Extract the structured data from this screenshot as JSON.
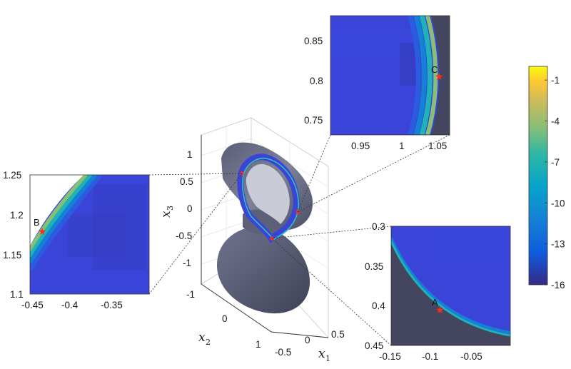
{
  "colors": {
    "panel_fill": "#3b44d8",
    "dark_surface": "#43465e",
    "surface_light": "#6b7088",
    "star": "#ff2a1a"
  },
  "chart_data": [
    {
      "type": "surface",
      "panel": "main-3d",
      "axes": [
        {
          "axis": "x1",
          "label_main": "x",
          "label_sub": "1",
          "ticks": [
            "-0.5",
            "0",
            "0.5"
          ]
        },
        {
          "axis": "x2",
          "label_main": "x",
          "label_sub": "2",
          "ticks": [
            "-1",
            "0",
            "1"
          ]
        },
        {
          "axis": "x3",
          "label_main": "x",
          "label_sub": "3",
          "ticks": [
            "1",
            "0.5",
            "0",
            "-0.5",
            "-1"
          ]
        }
      ],
      "grid": true
    },
    {
      "type": "heatmap",
      "panel": "inset-B",
      "xlim": [
        -0.45,
        -0.3
      ],
      "ylim": [
        1.1,
        1.25
      ],
      "x_ticks": [
        "-0.45",
        "-0.4",
        "-0.35"
      ],
      "y_ticks": [
        "1.25",
        "1.2",
        "1.15",
        "1.1"
      ],
      "points": [
        {
          "label": "B",
          "x": -0.437,
          "y": 1.182
        }
      ]
    },
    {
      "type": "heatmap",
      "panel": "inset-C",
      "xlim": [
        0.92,
        1.06
      ],
      "ylim": [
        0.73,
        0.88
      ],
      "x_ticks": [
        "0.95",
        "1",
        "1.05"
      ],
      "y_ticks": [
        "0.85",
        "0.8",
        "0.75"
      ],
      "points": [
        {
          "label": "C",
          "x": 1.043,
          "y": 0.804
        }
      ]
    },
    {
      "type": "heatmap",
      "panel": "inset-A",
      "xlim": [
        -0.15,
        0.0
      ],
      "ylim": [
        0.3,
        0.45
      ],
      "y_reversed": true,
      "x_ticks": [
        "-0.15",
        "-0.1",
        "-0.05"
      ],
      "y_ticks": [
        "0.3",
        "0.35",
        "0.4",
        "0.45"
      ],
      "points": [
        {
          "label": "A",
          "x": -0.088,
          "y": 0.396
        }
      ]
    },
    {
      "type": "colorbar",
      "range": [
        -16,
        0
      ],
      "ticks": [
        "-1",
        "-4",
        "-7",
        "-10",
        "-13",
        "-16"
      ],
      "tick_values": [
        -1,
        -4,
        -7,
        -10,
        -13,
        -16
      ],
      "colormap": "parula"
    }
  ]
}
